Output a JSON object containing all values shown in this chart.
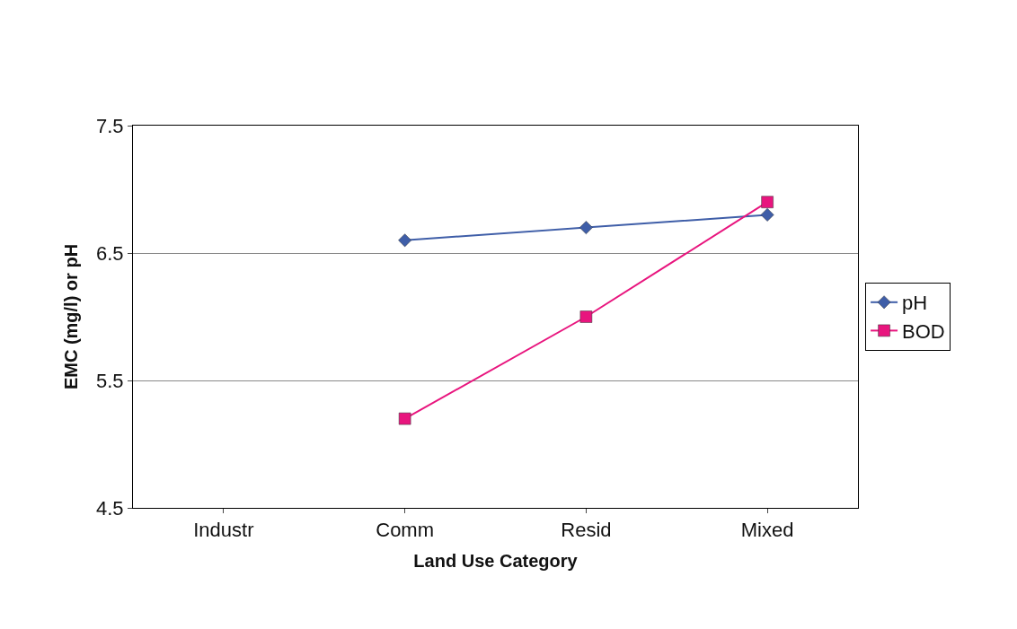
{
  "chart_data": {
    "type": "line",
    "xlabel": "Land Use Category",
    "ylabel": "EMC (mg/l) or pH",
    "categories": [
      "Industr",
      "Comm",
      "Resid",
      "Mixed"
    ],
    "series": [
      {
        "name": "pH",
        "color": "#3f5ea8",
        "marker": "diamond",
        "values": [
          null,
          6.6,
          6.7,
          6.8
        ]
      },
      {
        "name": "BOD",
        "color": "#e8157e",
        "marker": "square",
        "values": [
          null,
          5.2,
          6.0,
          6.9
        ]
      }
    ],
    "ylim": [
      4.5,
      7.5
    ],
    "yticks": [
      4.5,
      5.5,
      6.5,
      7.5
    ],
    "grid": "y",
    "legend": "right"
  }
}
